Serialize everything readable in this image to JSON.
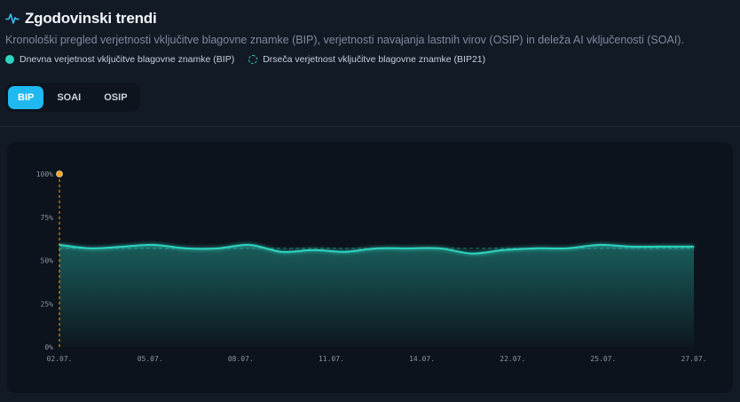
{
  "header": {
    "title": "Zgodovinski trendi",
    "subtitle": "Kronološki pregled verjetnosti vključitve blagovne znamke (BIP), verjetnosti navajanja lastnih virov (OSIP) in deleža AI vključenosti (SOAI).",
    "icon": "activity-pulse-icon"
  },
  "legend": {
    "daily": "Dnevna verjetnost vključitve blagovne znamke (BIP)",
    "rolling": "Drseča verjetnost vključitve blagovne znamke (BIP21)"
  },
  "tabs": [
    {
      "label": "BIP",
      "active": true
    },
    {
      "label": "SOAI",
      "active": false
    },
    {
      "label": "OSIP",
      "active": false
    }
  ],
  "colors": {
    "accent": "#1fb8f0",
    "series": "#2dd4bf",
    "marker": "#f5a623"
  },
  "chart_data": {
    "type": "area",
    "title": "",
    "xlabel": "",
    "ylabel": "",
    "ylim": [
      0,
      100
    ],
    "y_ticks": [
      "0%",
      "25%",
      "50%",
      "75%",
      "100%"
    ],
    "x_ticks": [
      "02.07.",
      "05.07.",
      "08.07.",
      "11.07.",
      "14.07.",
      "22.07.",
      "25.07.",
      "27.07."
    ],
    "grid": false,
    "series": [
      {
        "name": "Dnevna verjetnost vključitve blagovne znamke (BIP)",
        "style": "solid",
        "values": [
          59,
          57,
          58,
          59,
          57,
          57,
          59,
          55,
          56,
          55,
          57,
          57,
          57,
          54,
          56,
          57,
          57,
          59,
          58,
          58,
          58
        ]
      },
      {
        "name": "Drseča verjetnost vključitve blagovne znamke (BIP21)",
        "style": "dashed",
        "values": [
          57,
          57,
          57,
          57,
          57,
          57,
          57,
          57,
          57,
          57,
          57,
          57,
          57,
          57,
          57,
          57,
          57,
          57,
          57,
          57,
          57
        ]
      }
    ],
    "marker": {
      "x_index": 0,
      "value": 100
    }
  }
}
